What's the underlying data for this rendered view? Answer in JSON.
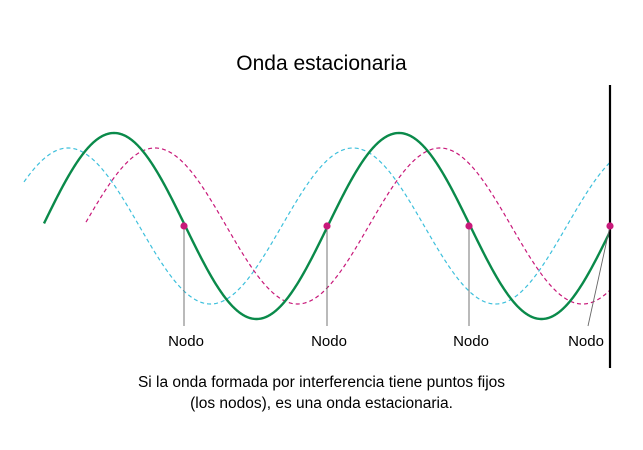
{
  "title": "Onda estacionaria",
  "node_label": "Nodo",
  "caption": {
    "line1": "Si la onda formada por interferencia tiene puntos fijos",
    "line2": "(los nodos), es una onda estacionaria."
  },
  "colors": {
    "standing_wave": "#0a8a4a",
    "wave_a": "#3ec0dc",
    "wave_b": "#c8197a",
    "node_point": "#c8197a",
    "wall": "#000000",
    "leader": "#666666"
  },
  "waves": {
    "node_count": 4
  }
}
